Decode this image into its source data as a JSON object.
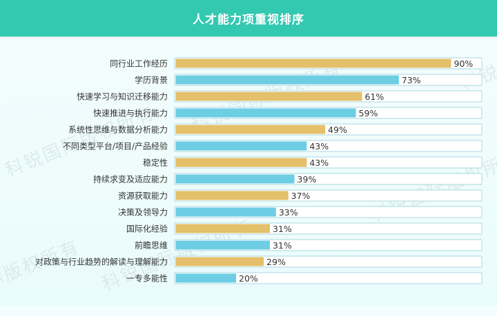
{
  "watermark": "科锐国际版权所有",
  "colors": {
    "header": "#33c8b0",
    "gold": "#e4c06a",
    "blue": "#6dcee3",
    "track_border": "#b9dfe6"
  },
  "chart_data": {
    "type": "bar",
    "orientation": "horizontal",
    "title": "人才能力项重视排序",
    "categories": [
      "同行业工作经历",
      "学历背景",
      "快速学习与知识迁移能力",
      "快速推进与执行能力",
      "系统性思维与数据分析能力",
      "不同类型平台/项目/产品经验",
      "稳定性",
      "持续求变及适应能力",
      "资源获取能力",
      "决策及领导力",
      "国际化经验",
      "前瞻思维",
      "对政策与行业趋势的解读与理解能力",
      "一专多能性"
    ],
    "values": [
      90,
      73,
      61,
      59,
      49,
      43,
      43,
      39,
      37,
      33,
      31,
      31,
      29,
      20
    ],
    "value_labels": [
      "90%",
      "73%",
      "61%",
      "59%",
      "49%",
      "43%",
      "43%",
      "39%",
      "37%",
      "33%",
      "31%",
      "31%",
      "29%",
      "20%"
    ],
    "xlim": [
      0,
      100
    ],
    "bar_colors": "alternating gold/blue starting with gold",
    "grid": false,
    "legend": "none"
  }
}
